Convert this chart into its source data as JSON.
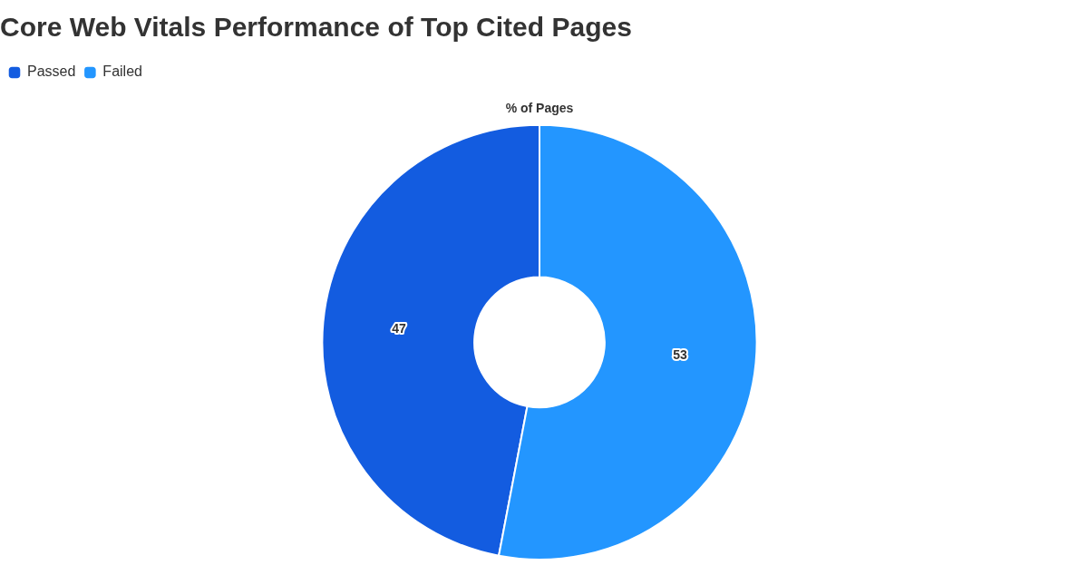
{
  "chart_data": {
    "type": "donut",
    "title": "Core Web Vitals Performance of Top Cited Pages",
    "subtitle": "% of Pages",
    "categories": [
      "Passed",
      "Failed"
    ],
    "values": [
      47,
      53
    ],
    "colors": [
      "#135ce0",
      "#2396ff"
    ],
    "legend": "top left",
    "data_labels": true
  }
}
